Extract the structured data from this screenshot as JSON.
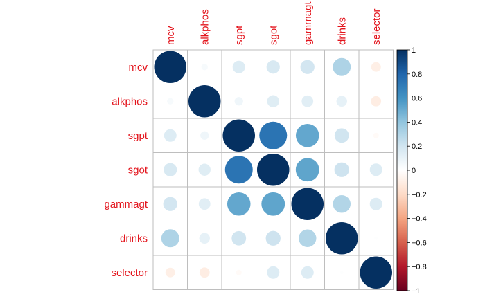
{
  "chart_data": {
    "type": "heatmap",
    "style": "circle-correlation",
    "title": "",
    "variables": [
      "mcv",
      "alkphos",
      "sgpt",
      "sgot",
      "gammagt",
      "drinks",
      "selector"
    ],
    "matrix": [
      [
        1.0,
        0.04,
        0.15,
        0.17,
        0.19,
        0.31,
        -0.09
      ],
      [
        0.04,
        1.0,
        0.07,
        0.14,
        0.13,
        0.11,
        -0.1
      ],
      [
        0.15,
        0.07,
        1.0,
        0.74,
        0.52,
        0.2,
        -0.03
      ],
      [
        0.17,
        0.14,
        0.74,
        1.0,
        0.53,
        0.21,
        0.15
      ],
      [
        0.19,
        0.13,
        0.52,
        0.53,
        1.0,
        0.3,
        0.15
      ],
      [
        0.31,
        0.11,
        0.2,
        0.21,
        0.3,
        1.0,
        0.01
      ],
      [
        -0.09,
        -0.1,
        -0.03,
        0.15,
        0.15,
        0.01,
        1.0
      ]
    ],
    "colorbar": {
      "range": [
        -1,
        1
      ],
      "ticks": [
        1,
        0.8,
        0.6,
        0.4,
        0.2,
        0,
        -0.2,
        -0.4,
        -0.6,
        -0.8,
        -1
      ],
      "tick_labels": [
        "1",
        "0.8",
        "0.6",
        "0.4",
        "0.2",
        "0",
        "−0.2",
        "−0.4",
        "−0.6",
        "−0.8",
        "−1"
      ],
      "placement": "right"
    },
    "colors": {
      "label": "#e3131b",
      "grid": "#bebebe",
      "scale": [
        "#67001f",
        "#b2182b",
        "#d6604d",
        "#f4a582",
        "#fddbc7",
        "#ffffff",
        "#d1e5f0",
        "#92c5de",
        "#4393c3",
        "#2166ac",
        "#053061"
      ]
    }
  }
}
